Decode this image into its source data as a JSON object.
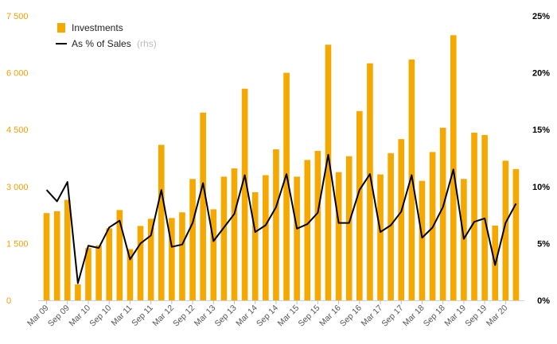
{
  "chart_data": {
    "type": "bar",
    "title": "",
    "x": [
      "Mar 09",
      "Jun 09",
      "Sep 09",
      "Dec 09",
      "Mar 10",
      "Jun 10",
      "Sep 10",
      "Dec 10",
      "Mar 11",
      "Jun 11",
      "Sep 11",
      "Dec 11",
      "Mar 12",
      "Jun 12",
      "Sep 12",
      "Dec 12",
      "Mar 13",
      "Jun 13",
      "Sep 13",
      "Dec 13",
      "Mar 14",
      "Jun 14",
      "Sep 14",
      "Dec 14",
      "Mar 15",
      "Jun 15",
      "Sep 15",
      "Dec 15",
      "Mar 16",
      "Jun 16",
      "Sep 16",
      "Dec 16",
      "Mar 17",
      "Jun 17",
      "Sep 17",
      "Dec 17",
      "Mar 18",
      "Jun 18",
      "Sep 18",
      "Dec 18",
      "Mar 19",
      "Jun 19",
      "Sep 19",
      "Dec 19",
      "Mar 20",
      "Jun 20"
    ],
    "x_tick_labels": [
      "Mar 09",
      "Sep 09",
      "Mar 10",
      "Sep 10",
      "Mar 11",
      "Sep 11",
      "Mar 12",
      "Sep 12",
      "Mar 13",
      "Sep 13",
      "Mar 14",
      "Sep 14",
      "Mar 15",
      "Sep 15",
      "Mar 16",
      "Sep 16",
      "Mar 17",
      "Sep 17",
      "Mar 18",
      "Sep 18",
      "Mar 19",
      "Sep 19",
      "Mar 20"
    ],
    "series": [
      {
        "name": "Investments",
        "type": "bar",
        "axis": "left",
        "color": "#f5a800",
        "values": [
          2300,
          2350,
          2650,
          420,
          1380,
          1450,
          1900,
          2380,
          1350,
          1960,
          2150,
          4100,
          2170,
          2320,
          3200,
          4950,
          2400,
          3260,
          3480,
          5580,
          2850,
          3300,
          3980,
          6000,
          3260,
          3700,
          3940,
          6740,
          3380,
          3800,
          4990,
          6250,
          3320,
          3880,
          4250,
          6350,
          3150,
          3910,
          4550,
          6990,
          3200,
          4420,
          4360,
          1970,
          3680,
          3460
        ]
      },
      {
        "name": "As % of Sales",
        "name_suffix": "(rhs)",
        "type": "line",
        "axis": "right",
        "color": "#000000",
        "values": [
          9.7,
          8.7,
          10.4,
          1.5,
          4.8,
          4.6,
          6.4,
          7.0,
          3.6,
          5.0,
          5.7,
          9.7,
          4.7,
          4.9,
          6.8,
          10.3,
          5.2,
          6.4,
          7.6,
          11.0,
          6.0,
          6.6,
          8.2,
          11.1,
          6.3,
          6.7,
          7.7,
          12.8,
          6.8,
          6.8,
          9.7,
          11.1,
          6.0,
          6.6,
          7.8,
          11.0,
          5.5,
          6.4,
          8.2,
          11.5,
          5.4,
          6.9,
          7.2,
          3.1,
          6.8,
          8.5
        ]
      }
    ],
    "y_left": {
      "ylim": [
        0,
        7500
      ],
      "ticks": [
        0,
        1500,
        3000,
        4500,
        6000,
        7500
      ],
      "tick_labels": [
        "0",
        "1 500",
        "3 000",
        "4 500",
        "6 000",
        "7 500"
      ],
      "color": "#f5a000"
    },
    "y_right": {
      "ylim": [
        0,
        25
      ],
      "ticks": [
        0,
        5,
        10,
        15,
        20,
        25
      ],
      "tick_labels": [
        "0%",
        "5%",
        "10%",
        "15%",
        "20%",
        "25%"
      ],
      "color": "#000000"
    },
    "grid": false,
    "legend": "top-left"
  }
}
